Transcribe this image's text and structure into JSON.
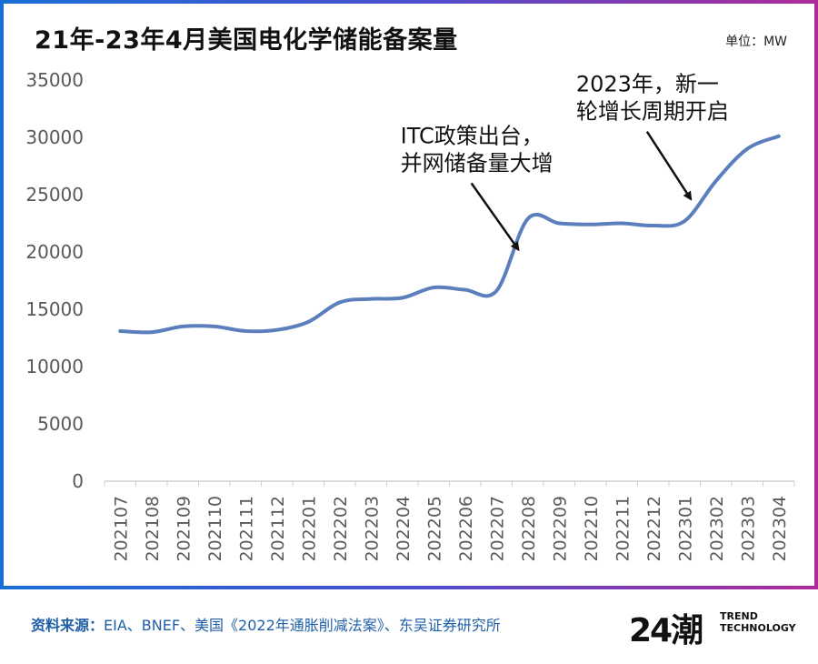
{
  "header": {
    "title": "21年-23年4月美国电化学储能备案量",
    "unit": "单位：MW"
  },
  "chart_data": {
    "type": "line",
    "categories": [
      "202107",
      "202108",
      "202109",
      "202110",
      "202111",
      "202112",
      "202201",
      "202202",
      "202203",
      "202204",
      "202205",
      "202206",
      "202207",
      "202208",
      "202209",
      "202210",
      "202211",
      "202212",
      "202301",
      "202302",
      "202303",
      "202304"
    ],
    "series": [
      {
        "values": [
          13100,
          13000,
          13500,
          13500,
          13100,
          13200,
          13900,
          15600,
          15900,
          16000,
          16900,
          16700,
          16600,
          22900,
          22500,
          22400,
          22500,
          22300,
          22700,
          26200,
          29000,
          30100
        ],
        "color": "#5b7fbd"
      }
    ],
    "ylim": [
      0,
      35000
    ],
    "yticks": [
      0,
      5000,
      10000,
      15000,
      20000,
      25000,
      30000,
      35000
    ],
    "grid": false,
    "annotations": [
      {
        "lines": [
          "ITC政策出台，",
          "并网储备量大增"
        ],
        "arrow_from": [
          11.2,
          26000
        ],
        "arrow_to": [
          12.7,
          20200
        ]
      },
      {
        "lines": [
          "2023年，新一",
          "轮增长周期开启"
        ],
        "arrow_from": [
          16.8,
          30500
        ],
        "arrow_to": [
          18.2,
          24600
        ]
      }
    ]
  },
  "footer": {
    "source_label": "资料来源：",
    "source_text": "EIA、BNEF、美国《2022年通胀削减法案》、东吴证券研究所",
    "logo_mark": "24潮",
    "logo_line1": "TREND",
    "logo_line2": "TECHNOLOGY"
  }
}
